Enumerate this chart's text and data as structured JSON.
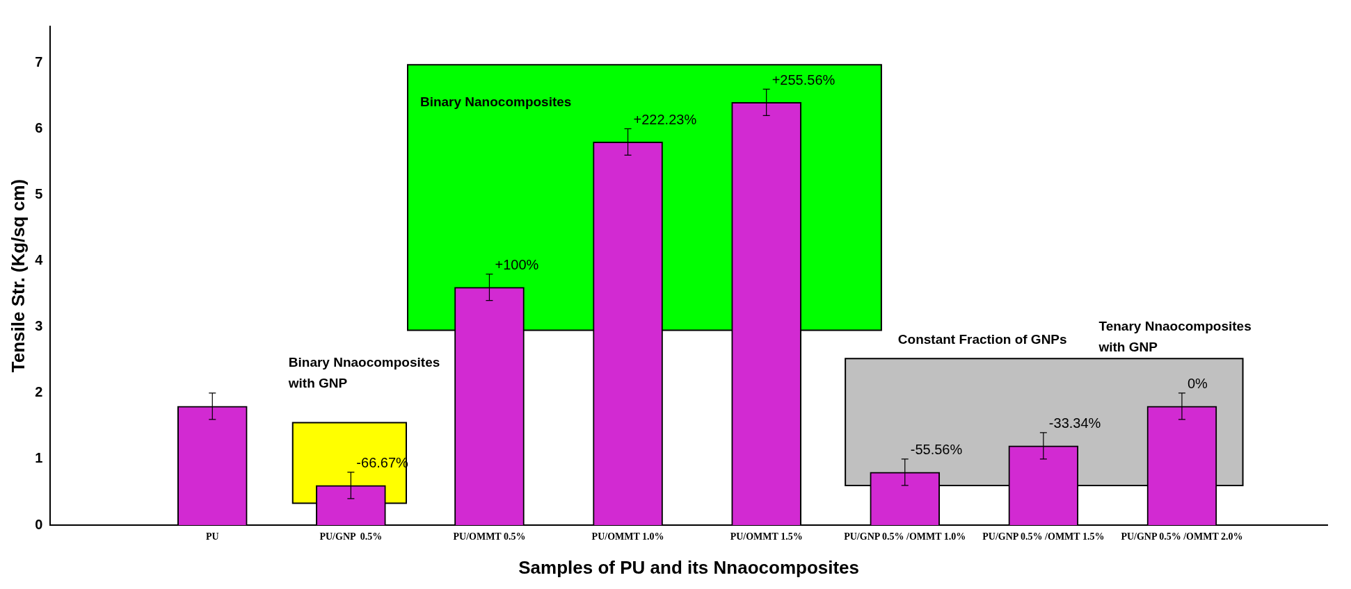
{
  "chart_data": {
    "type": "bar",
    "xlabel": "Samples of PU and its Nnaocomposites",
    "ylabel": "Tensile Str. (Kg/sq cm)",
    "categories": [
      "PU",
      "PU/GNP  0.5%",
      "PU/OMMT 0.5%",
      "PU/OMMT 1.0%",
      "PU/OMMT 1.5%",
      "PU/GNP 0.5% /OMMT 1.0%",
      "PU/GNP 0.5% /OMMT 1.5%",
      "PU/GNP 0.5% /OMMT 2.0%"
    ],
    "values": [
      1.8,
      0.6,
      3.6,
      5.8,
      6.4,
      0.8,
      1.2,
      1.8
    ],
    "errors": [
      0.2,
      0.2,
      0.2,
      0.2,
      0.2,
      0.2,
      0.2,
      0.2
    ],
    "color": "#d22ad2",
    "ylim": [
      0,
      7.55
    ],
    "yticks": [
      0,
      1,
      2,
      3,
      4,
      5,
      6,
      7
    ],
    "bands": [
      {
        "axis": "y",
        "from": 0.33,
        "to": 1.55,
        "color": "#ffff00"
      },
      {
        "axis": "y",
        "from": 2.95,
        "to": 6.97,
        "color": "#00ff00"
      },
      {
        "axis": "y",
        "from": 0.6,
        "to": 2.52,
        "color": "#c0c0c0"
      }
    ],
    "annotations": [
      {
        "text": "-66.67%",
        "x": "PU/GNP  0.5%",
        "y": 0.8
      },
      {
        "text": "+100%",
        "x": "PU/OMMT 0.5%",
        "y": 3.8
      },
      {
        "text": "+222.23%",
        "x": "PU/OMMT 1.0%",
        "y": 6.0
      },
      {
        "text": "+255.56%",
        "x": "PU/OMMT 1.5%",
        "y": 6.6
      },
      {
        "text": "-55.56%",
        "x": "PU/GNP 0.5% /OMMT 1.0%",
        "y": 1.0
      },
      {
        "text": "-33.34%",
        "x": "PU/GNP 0.5% /OMMT 1.5%",
        "y": 1.4
      },
      {
        "text": "0%",
        "x": "PU/GNP 0.5% /OMMT 2.0%",
        "y": 2.0
      },
      "Binary Nnaocomposites\nwith GNP",
      "Binary Nanocomposites",
      "Constant Fraction of GNPs",
      "Tenary Nnaocomposites\nwith GNP"
    ],
    "grid": false,
    "legend": false
  }
}
